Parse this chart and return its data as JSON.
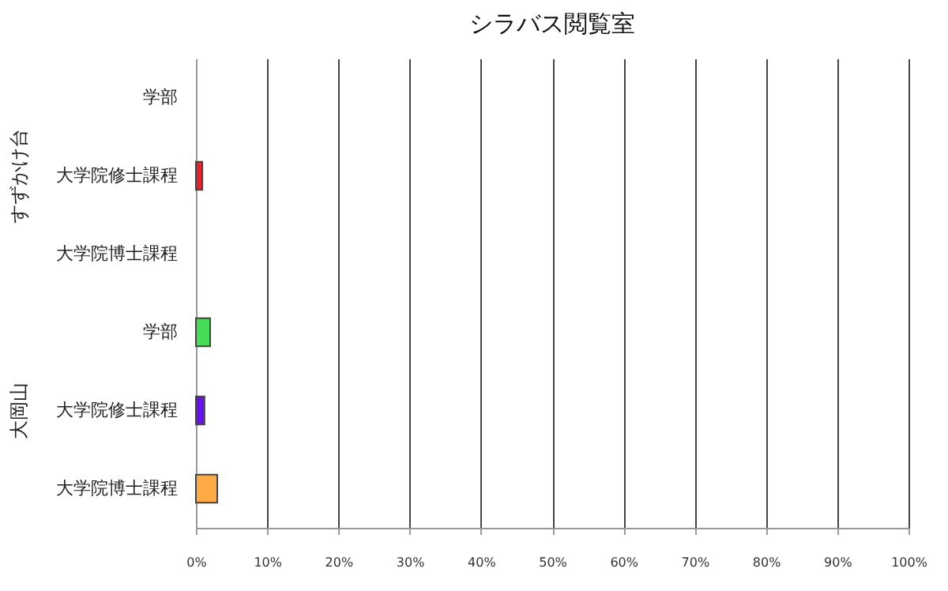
{
  "chart_data": {
    "type": "bar",
    "orientation": "horizontal",
    "title": "シラバス閲覧室",
    "categories": [
      "学部",
      "大学院修士課程",
      "大学院博士課程",
      "学部",
      "大学院修士課程",
      "大学院博士課程"
    ],
    "values": [
      null,
      0.9,
      null,
      2,
      1.2,
      3
    ],
    "colors": [
      null,
      "#e8202a",
      null,
      "#44dd55",
      "#6611ee",
      "#ffaa44"
    ],
    "xlim": [
      0,
      100
    ],
    "xticks": [
      {
        "value": 0,
        "label": "0%"
      },
      {
        "value": 10,
        "label": "10%"
      },
      {
        "value": 20,
        "label": "20%"
      },
      {
        "value": 30,
        "label": "30%"
      },
      {
        "value": 40,
        "label": "40%"
      },
      {
        "value": 50,
        "label": "50%"
      },
      {
        "value": 60,
        "label": "60%"
      },
      {
        "value": 70,
        "label": "70%"
      },
      {
        "value": 80,
        "label": "80%"
      },
      {
        "value": 90,
        "label": "90%"
      },
      {
        "value": 100,
        "label": "100%"
      }
    ],
    "grid": "x",
    "annotations": [
      "すずかけ台",
      "大岡山"
    ]
  }
}
